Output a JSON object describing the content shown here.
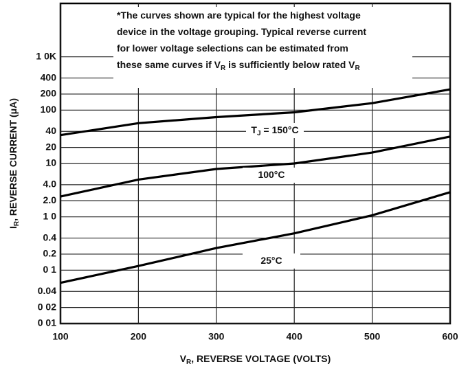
{
  "chart_data": {
    "type": "line",
    "x_label": [
      "V",
      "R",
      ", REVERSE VOLTAGE (VOLTS)"
    ],
    "y_label": [
      "I",
      "R",
      ", REVERSE CURRENT (μA)"
    ],
    "note": [
      [
        "*The curves shown are typical for the highest voltage"
      ],
      [
        "device in the voltage grouping. Typical reverse current"
      ],
      [
        "for lower voltage selections can be estimated from"
      ],
      [
        "these same curves if V",
        "R",
        " is sufficiently below rated V",
        "R"
      ]
    ],
    "x": [
      100,
      200,
      300,
      400,
      500,
      600
    ],
    "series": [
      {
        "name": [
          "T",
          "J",
          " = 150°C"
        ],
        "color": "#000000",
        "values": [
          34,
          57,
          74,
          91,
          135,
          245
        ]
      },
      {
        "name": [
          "100°C"
        ],
        "color": "#000000",
        "values": [
          2.4,
          5.0,
          7.9,
          10,
          16,
          32
        ]
      },
      {
        "name": [
          "25°C"
        ],
        "color": "#000000",
        "values": [
          0.058,
          0.12,
          0.26,
          0.49,
          1.07,
          2.9
        ]
      }
    ],
    "xlim": [
      100,
      600
    ],
    "xticks": [
      100,
      200,
      300,
      400,
      500,
      600
    ],
    "ylim": [
      0.01,
      10000
    ],
    "y_log": true,
    "yticks": [
      {
        "value": 1000,
        "label": "1 0K"
      },
      400,
      200,
      100,
      40,
      20,
      10,
      {
        "value": 4,
        "label": "4.0"
      },
      {
        "value": 2,
        "label": "2.0"
      },
      {
        "value": 1,
        "label": "1 0"
      },
      0.4,
      0.2,
      {
        "value": 0.1,
        "label": "0 1"
      },
      0.04,
      {
        "value": 0.02,
        "label": "0 02"
      },
      {
        "value": 0.01,
        "label": "0 01"
      }
    ],
    "grid": true
  }
}
